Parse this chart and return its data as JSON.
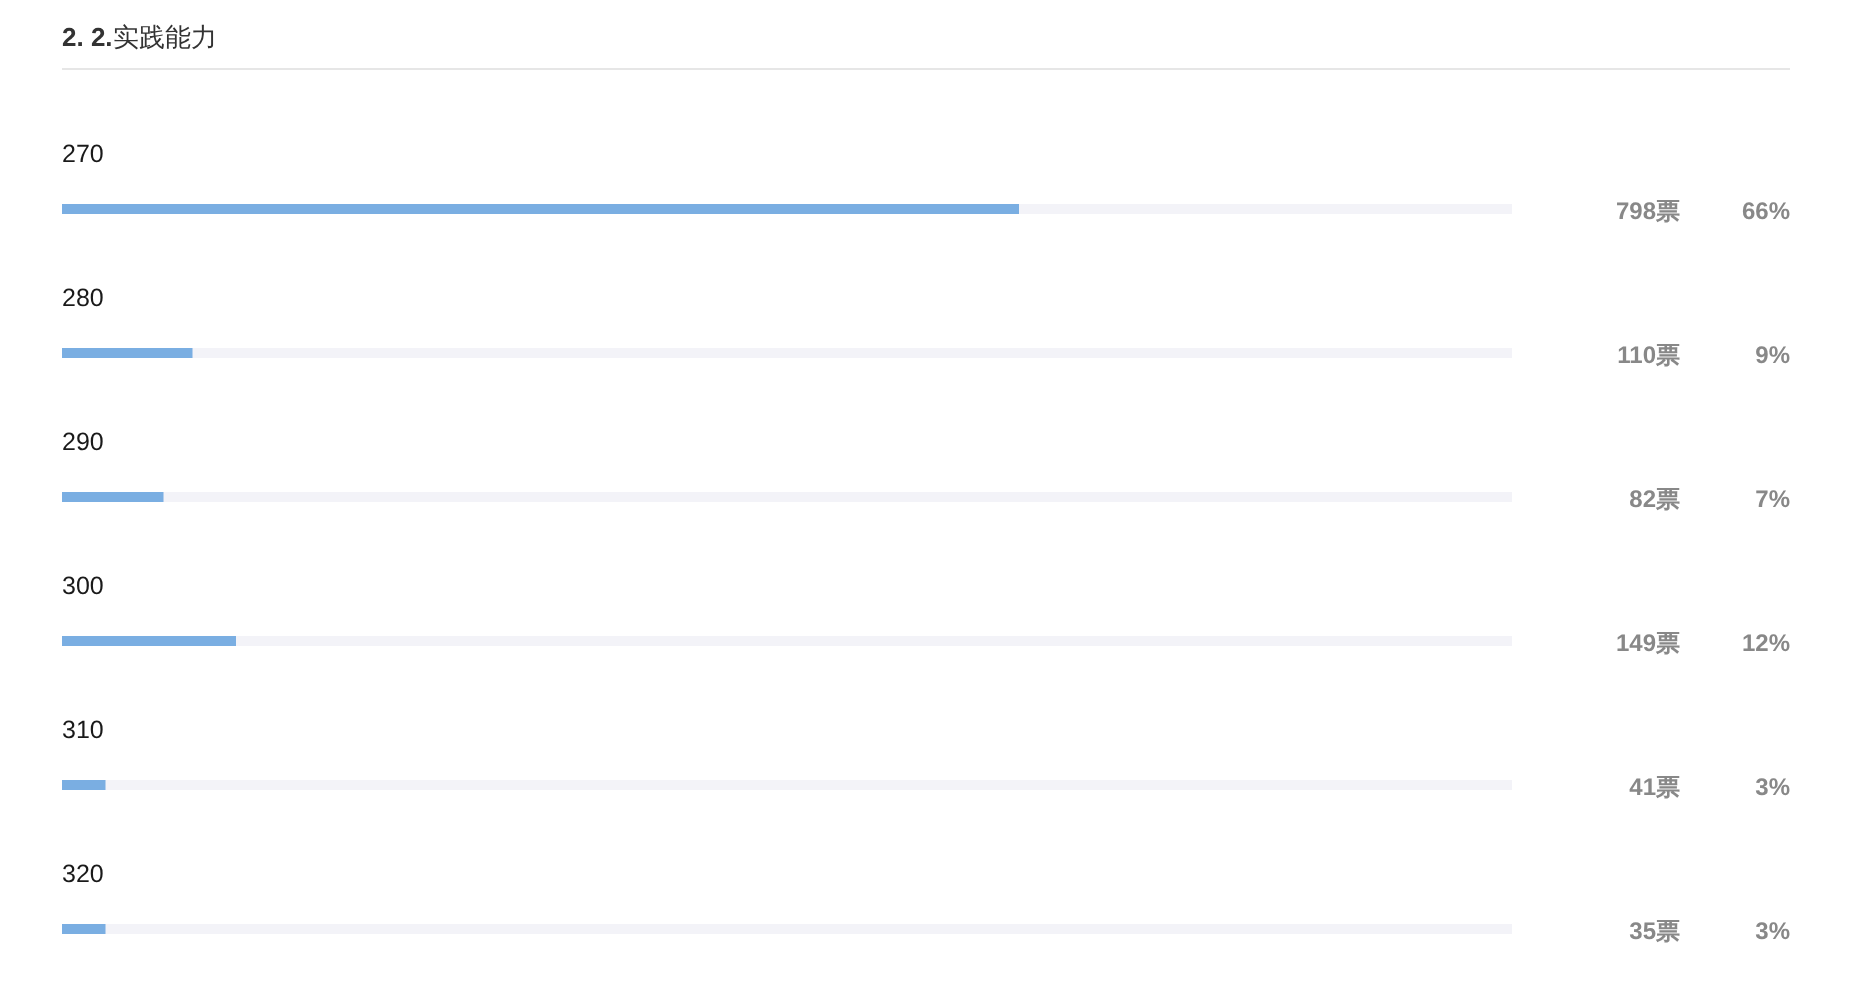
{
  "chart_data": {
    "type": "bar",
    "orientation": "horizontal",
    "title": "**2. 2.**实践能力",
    "categories": [
      "270",
      "280",
      "290",
      "300",
      "310",
      "320"
    ],
    "values": [
      66,
      9,
      7,
      12,
      3,
      3
    ],
    "value_labels": [
      "66%",
      "9%",
      "7%",
      "12%",
      "3%",
      "3%"
    ],
    "color": "#7aaee2",
    "xlim": [
      0,
      100
    ],
    "tick_labels": "y",
    "annotations": [
      "798票",
      "110票",
      "82票",
      "149票",
      "41票",
      "35票"
    ]
  }
}
